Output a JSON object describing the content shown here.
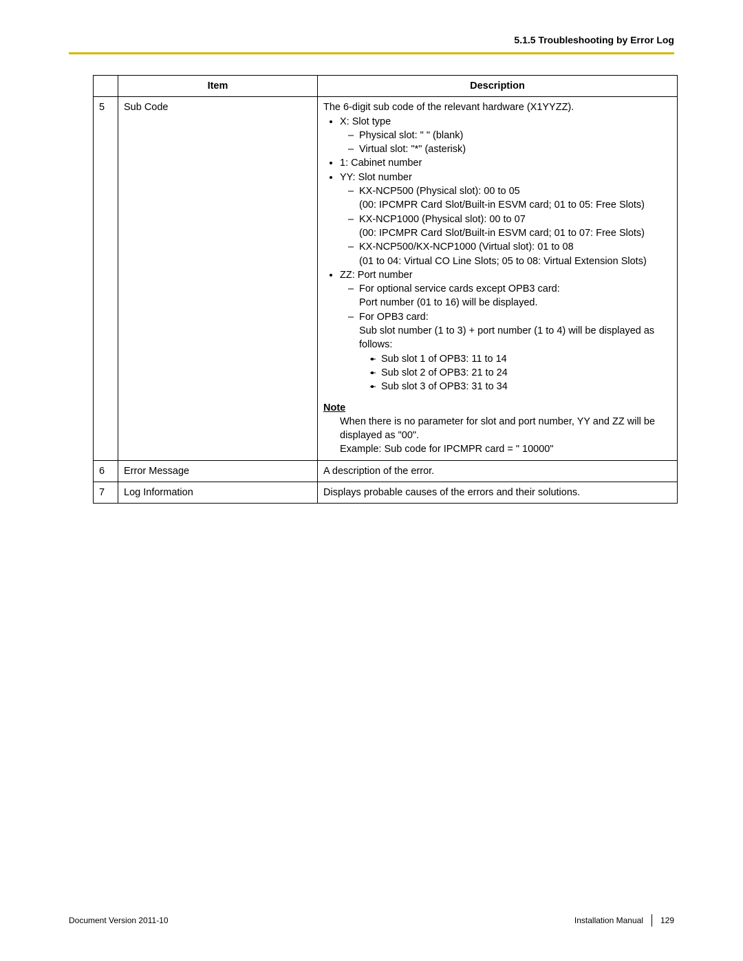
{
  "header": {
    "section_title": "5.1.5 Troubleshooting by Error Log"
  },
  "table": {
    "columns": {
      "num": "",
      "item": "Item",
      "desc": "Description"
    },
    "rows": [
      {
        "num": "5",
        "item": "Sub Code",
        "intro": "The 6-digit sub code of the relevant hardware (X1YYZZ).",
        "x_slot": "X: Slot type",
        "x_sub": {
          "physical": "Physical slot: \" \" (blank)",
          "virtual": "Virtual slot: \"*\" (asterisk)"
        },
        "cabinet": "1: Cabinet number",
        "yy_slot": "YY: Slot number",
        "yy_sub": {
          "ncp500_head": "KX-NCP500 (Physical slot): 00 to 05",
          "ncp500_body": "(00: IPCMPR Card Slot/Built-in ESVM card; 01 to 05: Free Slots)",
          "ncp1000_head": "KX-NCP1000 (Physical slot): 00 to 07",
          "ncp1000_body": "(00: IPCMPR Card Slot/Built-in ESVM card; 01 to 07: Free Slots)",
          "virtual_head": "KX-NCP500/KX-NCP1000 (Virtual slot): 01 to 08",
          "virtual_body": "(01 to 04: Virtual CO Line Slots; 05 to 08: Virtual Extension Slots)"
        },
        "zz_port": "ZZ: Port number",
        "zz_sub": {
          "opt_head": "For optional service cards except OPB3 card:",
          "opt_body": "Port number (01 to 16) will be displayed.",
          "opb3_head": "For OPB3 card:",
          "opb3_body": "Sub slot number (1 to 3) + port number (1 to 4) will be displayed as follows:",
          "sub1": "Sub slot 1 of OPB3: 11 to 14",
          "sub2": "Sub slot 2 of OPB3: 21 to 24",
          "sub3": "Sub slot 3 of OPB3: 31 to 34"
        },
        "note_heading": "Note",
        "note_line1": "When there is no parameter for slot and port number, YY and ZZ will be displayed as \"00\".",
        "note_line2": "Example: Sub code for IPCMPR card = \" 10000\""
      },
      {
        "num": "6",
        "item": "Error Message",
        "desc": "A description of the error."
      },
      {
        "num": "7",
        "item": "Log Information",
        "desc": "Displays probable causes of the errors and their solutions."
      }
    ]
  },
  "footer": {
    "doc_version": "Document Version  2011-10",
    "manual": "Installation Manual",
    "page": "129"
  },
  "colors": {
    "accent": "#d6b800",
    "text": "#000000",
    "background": "#ffffff"
  },
  "typography": {
    "body_fontsize": 14.5,
    "header_fontsize": 14,
    "footer_fontsize": 12
  }
}
